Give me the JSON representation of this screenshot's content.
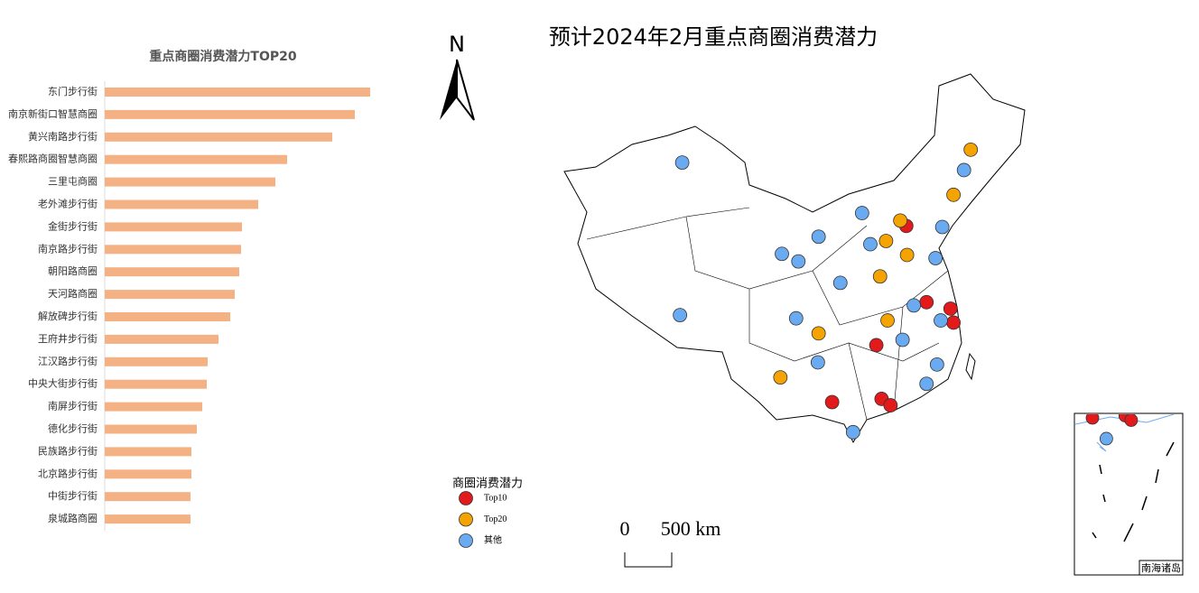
{
  "chart_data": {
    "type": "bar",
    "orientation": "horizontal",
    "title": "重点商圈消费潜力TOP20",
    "color": "#f4b183",
    "categories": [
      "东门步行街",
      "南京新街口智慧商圈",
      "黄兴南路步行街",
      "春熙路商圈智慧商圈",
      "三里屯商圈",
      "老外滩步行街",
      "金街步行街",
      "南京路步行街",
      "朝阳路商圈",
      "天河路商圈",
      "解放碑步行街",
      "王府井步行街",
      "江汉路步行街",
      "中央大街步行街",
      "南屏步行街",
      "德化步行街",
      "民族路步行街",
      "北京路步行街",
      "中街步行街",
      "泉城路商圈"
    ],
    "values": [
      294,
      277,
      252,
      202,
      189,
      170,
      152,
      151,
      149,
      144,
      139,
      126,
      114,
      113,
      108,
      102,
      96,
      96,
      95,
      95
    ]
  },
  "map": {
    "title": "预计2024年2月重点商圈消费潜力",
    "north": "N",
    "legend_title": "商圈消费潜力",
    "scale_bar": {
      "start": "0",
      "label": "500 km"
    },
    "inset_label": "南海诸岛",
    "series": [
      {
        "name": "Top10",
        "color": "#e31a1c",
        "points": [
          {
            "lon": 119.0,
            "lat": 39.4
          },
          {
            "lon": 121.7,
            "lat": 32.3
          },
          {
            "lon": 124.9,
            "lat": 31.7
          },
          {
            "lon": 125.3,
            "lat": 30.4
          },
          {
            "lon": 115.0,
            "lat": 28.3
          },
          {
            "lon": 109.1,
            "lat": 23.0
          },
          {
            "lon": 115.7,
            "lat": 23.3
          },
          {
            "lon": 116.9,
            "lat": 22.7
          }
        ]
      },
      {
        "name": "Top20",
        "color": "#f5a300",
        "points": [
          {
            "lon": 127.6,
            "lat": 46.5
          },
          {
            "lon": 125.3,
            "lat": 42.3
          },
          {
            "lon": 118.2,
            "lat": 39.9
          },
          {
            "lon": 116.3,
            "lat": 38.0
          },
          {
            "lon": 119.1,
            "lat": 36.7
          },
          {
            "lon": 115.5,
            "lat": 34.7
          },
          {
            "lon": 116.5,
            "lat": 30.6
          },
          {
            "lon": 107.3,
            "lat": 29.4
          },
          {
            "lon": 102.2,
            "lat": 25.3
          }
        ]
      },
      {
        "name": "其他",
        "color": "#6aaaf0",
        "points": [
          {
            "lon": 89.1,
            "lat": 45.3
          },
          {
            "lon": 126.7,
            "lat": 44.6
          },
          {
            "lon": 113.1,
            "lat": 40.6
          },
          {
            "lon": 123.8,
            "lat": 39.3
          },
          {
            "lon": 107.3,
            "lat": 38.4
          },
          {
            "lon": 114.2,
            "lat": 37.7
          },
          {
            "lon": 102.4,
            "lat": 36.8
          },
          {
            "lon": 104.6,
            "lat": 36.1
          },
          {
            "lon": 122.9,
            "lat": 36.4
          },
          {
            "lon": 110.2,
            "lat": 34.1
          },
          {
            "lon": 120.0,
            "lat": 32.0
          },
          {
            "lon": 123.6,
            "lat": 30.6
          },
          {
            "lon": 88.8,
            "lat": 31.1
          },
          {
            "lon": 104.3,
            "lat": 30.8
          },
          {
            "lon": 118.5,
            "lat": 28.8
          },
          {
            "lon": 107.2,
            "lat": 26.7
          },
          {
            "lon": 123.1,
            "lat": 26.5
          },
          {
            "lon": 121.7,
            "lat": 24.7
          },
          {
            "lon": 111.9,
            "lat": 20.2
          }
        ]
      }
    ]
  }
}
